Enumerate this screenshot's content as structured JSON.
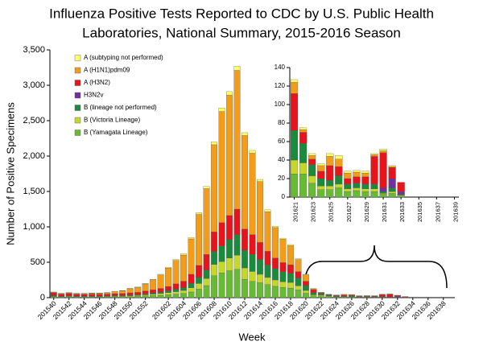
{
  "chart_data": [
    {
      "type": "bar",
      "stacked": true,
      "title_lines": [
        "Influenza Positive Tests Reported to CDC by U.S. Public Health",
        "Laboratories, National Summary, 2015-2016 Season"
      ],
      "y_label": "Number of Positive Specimens",
      "x_label": "Week",
      "categories": [
        "201540",
        null,
        "201542",
        null,
        "201544",
        null,
        "201546",
        null,
        "201548",
        null,
        "201550",
        null,
        "201552",
        null,
        null,
        "201602",
        null,
        "201604",
        null,
        "201606",
        null,
        "201608",
        null,
        "201610",
        null,
        "201612",
        null,
        "201614",
        null,
        "201616",
        null,
        "201618",
        null,
        "201620",
        null,
        "201622",
        null,
        "201624",
        null,
        "201626",
        null,
        "201628",
        null,
        "201630",
        null,
        "201632",
        null,
        "201634",
        null,
        "201636",
        null,
        "201638",
        null
      ],
      "ylim": [
        0,
        3500
      ],
      "yticks": [
        0,
        500,
        {
          "value": 1000,
          "label": "1,000"
        },
        {
          "value": 1500,
          "label": "1,500"
        },
        {
          "value": 2000,
          "label": "2,000"
        },
        {
          "value": 2500,
          "label": "2,500"
        },
        {
          "value": 3000,
          "label": "3,000"
        },
        {
          "value": 3500,
          "label": "3,500"
        }
      ],
      "series": [
        {
          "name": "A (subtyping not performed)",
          "color": "#ffff66",
          "values": [
            2,
            2,
            2,
            2,
            2,
            2,
            2,
            2,
            3,
            3,
            4,
            5,
            6,
            8,
            10,
            12,
            15,
            18,
            20,
            25,
            30,
            40,
            50,
            50,
            60,
            40,
            40,
            30,
            25,
            20,
            15,
            15,
            12,
            8,
            3,
            2,
            2,
            2,
            3,
            4,
            2,
            2,
            2,
            1,
            2,
            1,
            0,
            0,
            0,
            0,
            0,
            0,
            0
          ]
        },
        {
          "name": "A (H1N1)pdm09",
          "color": "#f39c1a",
          "values": [
            10,
            8,
            10,
            10,
            12,
            14,
            16,
            18,
            30,
            38,
            58,
            70,
            100,
            140,
            190,
            260,
            330,
            370,
            500,
            720,
            930,
            1230,
            1570,
            1700,
            1960,
            1320,
            1150,
            860,
            560,
            430,
            330,
            270,
            170,
            90,
            12,
            3,
            4,
            6,
            10,
            8,
            6,
            5,
            4,
            2,
            2,
            1,
            0,
            0,
            0,
            0,
            0,
            0,
            0
          ]
        },
        {
          "name": "A (H3N2)",
          "color": "#e8141b",
          "values": [
            38,
            28,
            32,
            26,
            24,
            26,
            24,
            24,
            28,
            28,
            32,
            34,
            40,
            44,
            50,
            60,
            75,
            90,
            130,
            170,
            220,
            280,
            330,
            340,
            360,
            300,
            280,
            240,
            190,
            150,
            130,
            120,
            90,
            60,
            40,
            12,
            6,
            8,
            16,
            10,
            6,
            7,
            8,
            30,
            38,
            12,
            10,
            0,
            0,
            0,
            0,
            0,
            0
          ]
        },
        {
          "name": "H3N2v",
          "color": "#7030a0",
          "values": [
            0,
            0,
            0,
            0,
            0,
            0,
            0,
            0,
            0,
            0,
            0,
            0,
            0,
            0,
            0,
            0,
            0,
            0,
            0,
            0,
            0,
            0,
            0,
            0,
            0,
            0,
            0,
            0,
            0,
            0,
            0,
            0,
            0,
            0,
            0,
            0,
            0,
            0,
            0,
            0,
            0,
            0,
            0,
            0,
            4,
            10,
            3,
            0,
            0,
            0,
            0,
            0,
            0
          ]
        },
        {
          "name": "B (lineage not performed)",
          "color": "#1a8a3c",
          "values": [
            10,
            8,
            8,
            7,
            7,
            7,
            7,
            8,
            9,
            9,
            10,
            11,
            14,
            18,
            22,
            28,
            35,
            40,
            60,
            85,
            120,
            180,
            220,
            260,
            290,
            250,
            240,
            210,
            180,
            160,
            140,
            130,
            110,
            70,
            32,
            21,
            12,
            8,
            6,
            9,
            5,
            5,
            5,
            5,
            2,
            4,
            1,
            0,
            0,
            0,
            0,
            0,
            0
          ]
        },
        {
          "name": "B (Victoria Lineage)",
          "color": "#c4d82a",
          "values": [
            5,
            4,
            6,
            5,
            5,
            6,
            6,
            6,
            8,
            9,
            10,
            12,
            16,
            20,
            24,
            30,
            35,
            42,
            60,
            80,
            100,
            160,
            160,
            180,
            200,
            160,
            140,
            120,
            100,
            90,
            80,
            80,
            60,
            40,
            15,
            12,
            8,
            4,
            4,
            4,
            3,
            3,
            3,
            3,
            1,
            2,
            1,
            0,
            0,
            0,
            0,
            0,
            0
          ]
        },
        {
          "name": "B (Yamagata Lineage)",
          "color": "#66bb33",
          "values": [
            15,
            10,
            12,
            10,
            10,
            10,
            10,
            12,
            12,
            13,
            16,
            18,
            24,
            30,
            34,
            40,
            50,
            60,
            80,
            120,
            170,
            310,
            350,
            380,
            400,
            260,
            230,
            210,
            185,
            160,
            145,
            135,
            108,
            62,
            25,
            25,
            15,
            8,
            8,
            10,
            6,
            7,
            6,
            6,
            3,
            4,
            1,
            0,
            0,
            0,
            0,
            0,
            0
          ]
        }
      ]
    },
    {
      "type": "bar",
      "stacked": true,
      "categories": [
        "201621",
        null,
        "201623",
        null,
        "201625",
        null,
        "201627",
        null,
        "201629",
        null,
        "201631",
        null,
        "201633",
        null,
        "201635",
        null,
        "201637",
        null,
        "201639"
      ],
      "ylim": [
        0,
        140
      ],
      "yticks": [
        0,
        20,
        40,
        60,
        80,
        100,
        120,
        140
      ],
      "series": [
        {
          "color": "#ffff66",
          "values": [
            3,
            2,
            2,
            2,
            3,
            4,
            2,
            2,
            2,
            1,
            2,
            1,
            0,
            0,
            0,
            0,
            0,
            0,
            0
          ]
        },
        {
          "color": "#f39c1a",
          "values": [
            12,
            3,
            4,
            6,
            10,
            8,
            6,
            5,
            4,
            2,
            2,
            1,
            0,
            0,
            0,
            0,
            0,
            0,
            0
          ]
        },
        {
          "color": "#e8141b",
          "values": [
            40,
            12,
            6,
            8,
            16,
            10,
            6,
            7,
            8,
            30,
            38,
            12,
            10,
            0,
            0,
            0,
            0,
            0,
            0
          ]
        },
        {
          "color": "#7030a0",
          "values": [
            0,
            0,
            0,
            0,
            0,
            0,
            0,
            0,
            0,
            0,
            4,
            10,
            3,
            0,
            0,
            0,
            0,
            0,
            0
          ]
        },
        {
          "color": "#1a8a3c",
          "values": [
            32,
            21,
            12,
            8,
            6,
            9,
            5,
            5,
            5,
            5,
            2,
            4,
            1,
            0,
            0,
            0,
            0,
            0,
            0
          ]
        },
        {
          "color": "#c4d82a",
          "values": [
            15,
            12,
            8,
            4,
            4,
            4,
            3,
            3,
            3,
            3,
            1,
            2,
            1,
            0,
            0,
            0,
            0,
            0,
            0
          ]
        },
        {
          "color": "#66bb33",
          "values": [
            25,
            25,
            15,
            8,
            8,
            10,
            6,
            7,
            6,
            6,
            3,
            4,
            1,
            0,
            0,
            0,
            0,
            0,
            0
          ]
        }
      ]
    }
  ]
}
